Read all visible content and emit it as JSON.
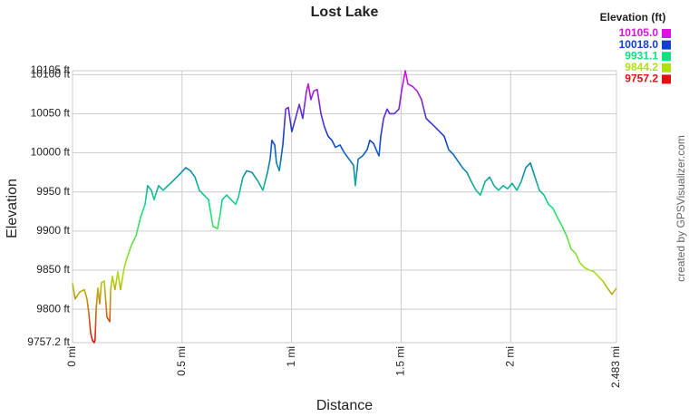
{
  "chart_data": {
    "type": "line",
    "title": "Lost Lake",
    "xlabel": "Distance",
    "ylabel": "Elevation",
    "credit": "created by GPSVisualizer.com",
    "legend_title": "Elevation (ft)",
    "legend": [
      {
        "value": 10105,
        "label": "10105.0",
        "color": "#e010e0"
      },
      {
        "value": 10018,
        "label": "10018.0",
        "color": "#1040d0"
      },
      {
        "value": 9931.1,
        "label": "9931.1",
        "color": "#10e080"
      },
      {
        "value": 9844.2,
        "label": "9844.2",
        "color": "#b0e010"
      },
      {
        "value": 9757.2,
        "label": "9757.2",
        "color": "#e01010"
      }
    ],
    "grid": true,
    "xlim": [
      0,
      2.483
    ],
    "ylim": [
      9757.2,
      10105
    ],
    "xticks": [
      {
        "value": 0,
        "label": "0 mi"
      },
      {
        "value": 0.5,
        "label": "0.5 mi"
      },
      {
        "value": 1,
        "label": "1 mi"
      },
      {
        "value": 1.5,
        "label": "1.5 mi"
      },
      {
        "value": 2,
        "label": "2 mi"
      },
      {
        "value": 2.483,
        "label": "2.483 mi"
      }
    ],
    "yticks": [
      {
        "value": 9757.2,
        "label": "9757.2 ft"
      },
      {
        "value": 9800,
        "label": "9800 ft"
      },
      {
        "value": 9850,
        "label": "9850 ft"
      },
      {
        "value": 9900,
        "label": "9900 ft"
      },
      {
        "value": 9950,
        "label": "9950 ft"
      },
      {
        "value": 10000,
        "label": "10000 ft"
      },
      {
        "value": 10050,
        "label": "10050 ft"
      },
      {
        "value": 10100,
        "label": "10100 ft"
      },
      {
        "value": 10105,
        "label": "10105 ft"
      }
    ],
    "x": [
      0,
      0.012,
      0.033,
      0.054,
      0.066,
      0.074,
      0.083,
      0.091,
      0.099,
      0.103,
      0.108,
      0.116,
      0.124,
      0.132,
      0.145,
      0.157,
      0.17,
      0.174,
      0.182,
      0.194,
      0.207,
      0.219,
      0.236,
      0.248,
      0.269,
      0.29,
      0.31,
      0.331,
      0.343,
      0.36,
      0.372,
      0.393,
      0.414,
      0.435,
      0.455,
      0.476,
      0.497,
      0.517,
      0.538,
      0.559,
      0.579,
      0.6,
      0.621,
      0.641,
      0.662,
      0.675,
      0.683,
      0.704,
      0.724,
      0.745,
      0.757,
      0.778,
      0.795,
      0.819,
      0.848,
      0.869,
      0.89,
      0.902,
      0.91,
      0.923,
      0.931,
      0.944,
      0.96,
      0.973,
      0.985,
      1.001,
      1.018,
      1.035,
      1.051,
      1.068,
      1.076,
      1.088,
      1.101,
      1.117,
      1.134,
      1.15,
      1.167,
      1.184,
      1.2,
      1.221,
      1.241,
      1.262,
      1.283,
      1.291,
      1.304,
      1.324,
      1.345,
      1.357,
      1.374,
      1.386,
      1.399,
      1.407,
      1.42,
      1.436,
      1.448,
      1.469,
      1.49,
      1.502,
      1.519,
      1.531,
      1.552,
      1.573,
      1.593,
      1.614,
      1.655,
      1.697,
      1.717,
      1.738,
      1.78,
      1.8,
      1.821,
      1.842,
      1.862,
      1.883,
      1.904,
      1.924,
      1.945,
      1.966,
      1.986,
      2.007,
      2.028,
      2.048,
      2.069,
      2.09,
      2.111,
      2.131,
      2.152,
      2.173,
      2.193,
      2.214,
      2.235,
      2.255,
      2.276,
      2.297,
      2.317,
      2.338,
      2.359,
      2.38,
      2.4,
      2.421,
      2.442,
      2.462,
      2.483
    ],
    "values": [
      9833,
      9813,
      9822,
      9825,
      9813,
      9796,
      9769,
      9760,
      9757.2,
      9761,
      9801,
      9827,
      9807,
      9834,
      9836,
      9790,
      9784,
      9825,
      9842,
      9825,
      9848,
      9825,
      9853,
      9865,
      9882,
      9894,
      9917,
      9934,
      9958,
      9952,
      9940,
      9958,
      9952,
      9958,
      9963,
      9969,
      9975,
      9981,
      9977,
      9969,
      9952,
      9946,
      9940,
      9906,
      9903,
      9923,
      9940,
      9946,
      9940,
      9934,
      9943,
      9969,
      9977,
      9975,
      9963,
      9952,
      9975,
      9992,
      10016,
      10010,
      9987,
      9977,
      10010,
      10056,
      10058,
      10027,
      10044,
      10062,
      10044,
      10079,
      10088,
      10068,
      10079,
      10081,
      10050,
      10033,
      10021,
      10016,
      10007,
      10010,
      10000,
      9992,
      9984,
      9958,
      9992,
      9996,
      10004,
      10016,
      10012,
      10004,
      9996,
      10021,
      10044,
      10056,
      10050,
      10050,
      10056,
      10079,
      10105,
      10088,
      10085,
      10079,
      10068,
      10044,
      10033,
      10021,
      10004,
      9998,
      9981,
      9975,
      9963,
      9952,
      9946,
      9963,
      9969,
      9958,
      9952,
      9958,
      9954,
      9961,
      9952,
      9963,
      9981,
      9987,
      9969,
      9952,
      9946,
      9934,
      9929,
      9917,
      9906,
      9894,
      9877,
      9871,
      9859,
      9853,
      9850,
      9848,
      9842,
      9836,
      9827,
      9819,
      9827
    ]
  }
}
